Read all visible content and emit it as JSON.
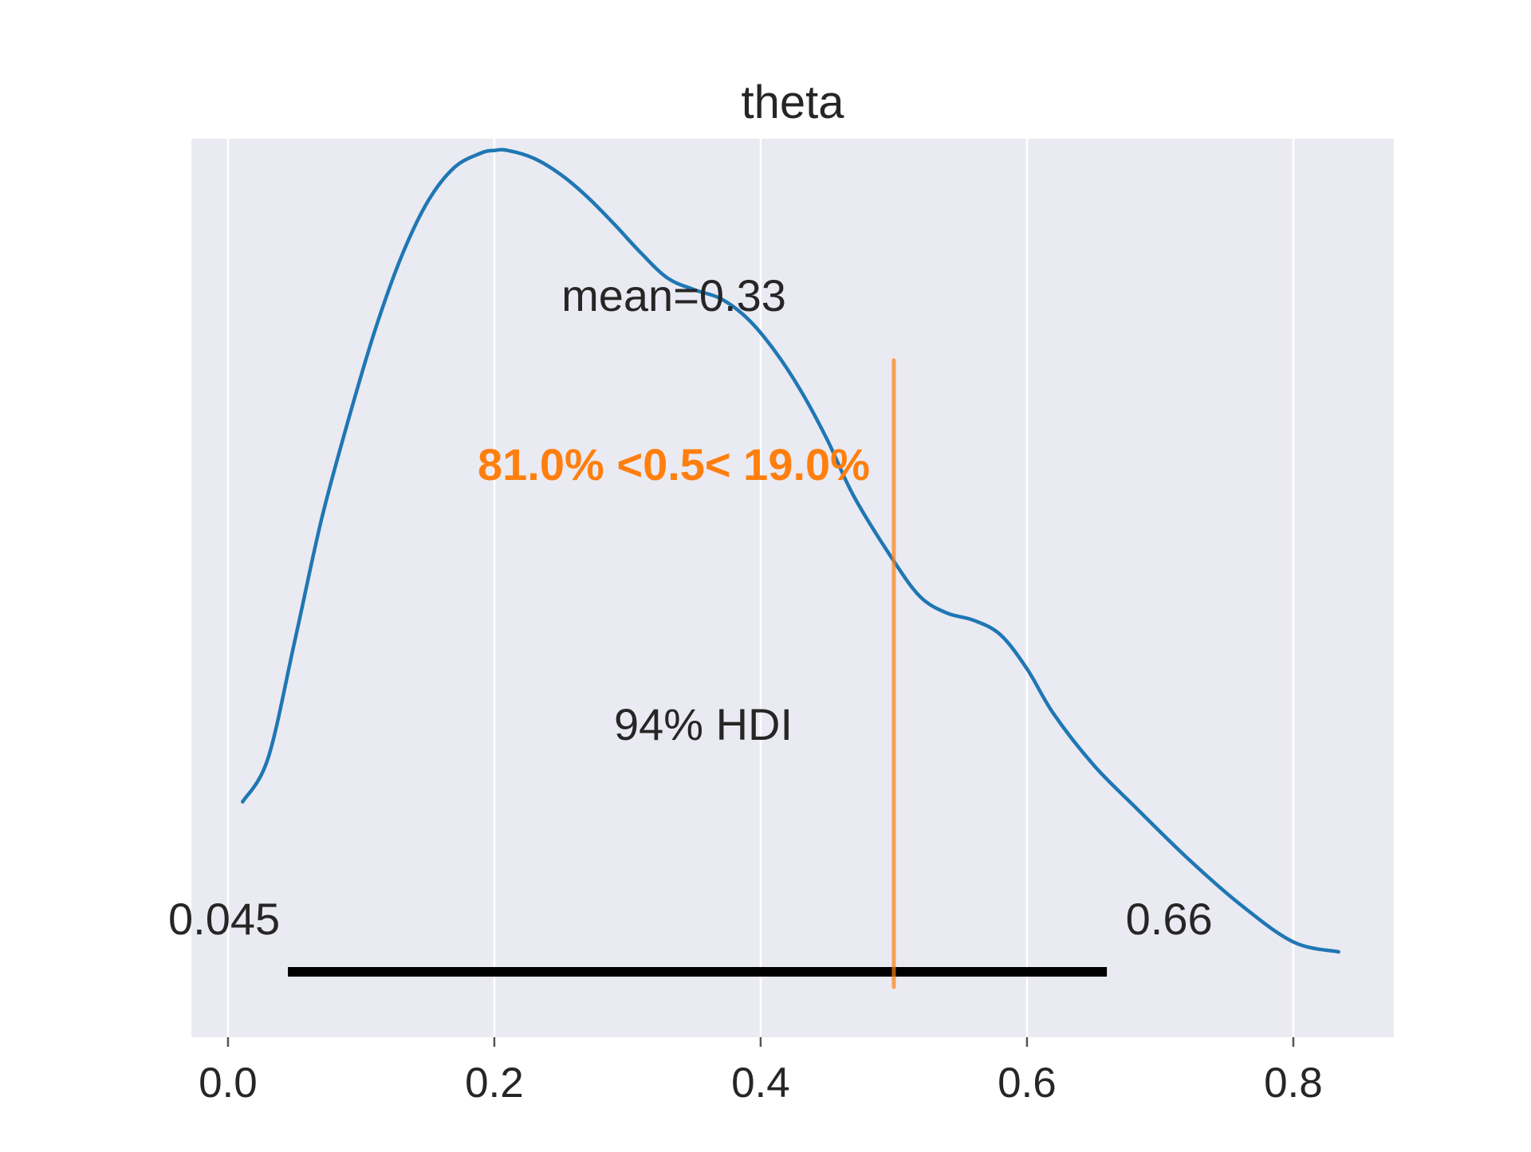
{
  "chart_data": {
    "type": "area",
    "title": "theta",
    "xlabel": "",
    "ylabel": "",
    "xlim": [
      -0.0275,
      0.8755
    ],
    "ylim": [
      0,
      1
    ],
    "x_ticks": [
      0.0,
      0.2,
      0.4,
      0.6,
      0.8
    ],
    "x_tick_labels": [
      "0.0",
      "0.2",
      "0.4",
      "0.6",
      "0.8"
    ],
    "grid": true,
    "background_color": "#eaeaf2",
    "series": [
      {
        "x": [
          0.011,
          0.03,
          0.05,
          0.07,
          0.09,
          0.11,
          0.13,
          0.15,
          0.17,
          0.19,
          0.2,
          0.21,
          0.23,
          0.25,
          0.27,
          0.29,
          0.31,
          0.33,
          0.35,
          0.37,
          0.39,
          0.41,
          0.43,
          0.45,
          0.47,
          0.5,
          0.52,
          0.54,
          0.56,
          0.58,
          0.6,
          0.62,
          0.65,
          0.68,
          0.72,
          0.76,
          0.8,
          0.834
        ],
        "y": [
          0.262,
          0.31,
          0.44,
          0.575,
          0.685,
          0.785,
          0.868,
          0.93,
          0.968,
          0.984,
          0.987,
          0.987,
          0.978,
          0.96,
          0.935,
          0.905,
          0.873,
          0.845,
          0.832,
          0.822,
          0.8,
          0.765,
          0.72,
          0.665,
          0.602,
          0.53,
          0.49,
          0.472,
          0.464,
          0.448,
          0.41,
          0.36,
          0.303,
          0.258,
          0.2,
          0.148,
          0.106,
          0.095
        ]
      }
    ],
    "colors": {
      "density": "#1f77b4",
      "reference": "#ff7f0e",
      "hdi": "#000000",
      "text": "#262626",
      "grid": "#ffffff"
    },
    "reference_value": 0.5,
    "reference_label": "81.0% <0.5< 19.0%",
    "mean_label": "mean=0.33",
    "hdi": {
      "label": "94% HDI",
      "low": 0.045,
      "high": 0.66,
      "low_label": "0.045",
      "high_label": "0.66"
    }
  }
}
